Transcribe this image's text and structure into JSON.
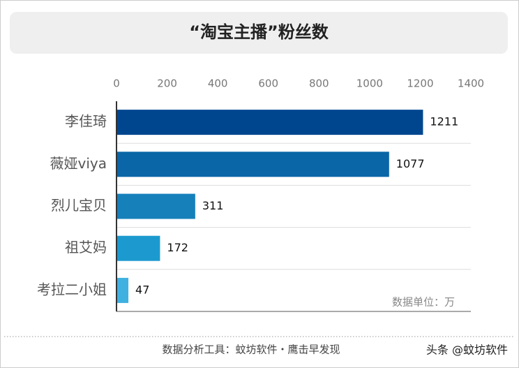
{
  "chart_data": {
    "type": "barh",
    "title": "“淘宝主播”粉丝数",
    "categories": [
      "李佳琦",
      "薇娅viya",
      "烈儿宝贝",
      "祖艾妈",
      "考拉二小姐"
    ],
    "values": [
      1211,
      1077,
      311,
      172,
      47
    ],
    "colors": [
      "#00468f",
      "#0a66a6",
      "#1680bb",
      "#1c9acf",
      "#3fb1e0"
    ],
    "xlim": [
      0,
      1400
    ],
    "xticks": [
      0,
      200,
      400,
      600,
      800,
      1000,
      1200,
      1400
    ],
    "grid": false,
    "unit_note": "数据单位：万",
    "footer": "数据分析工具：蚊坊软件・鹰击早发现",
    "watermark": "头条 @蚊坊软件"
  }
}
